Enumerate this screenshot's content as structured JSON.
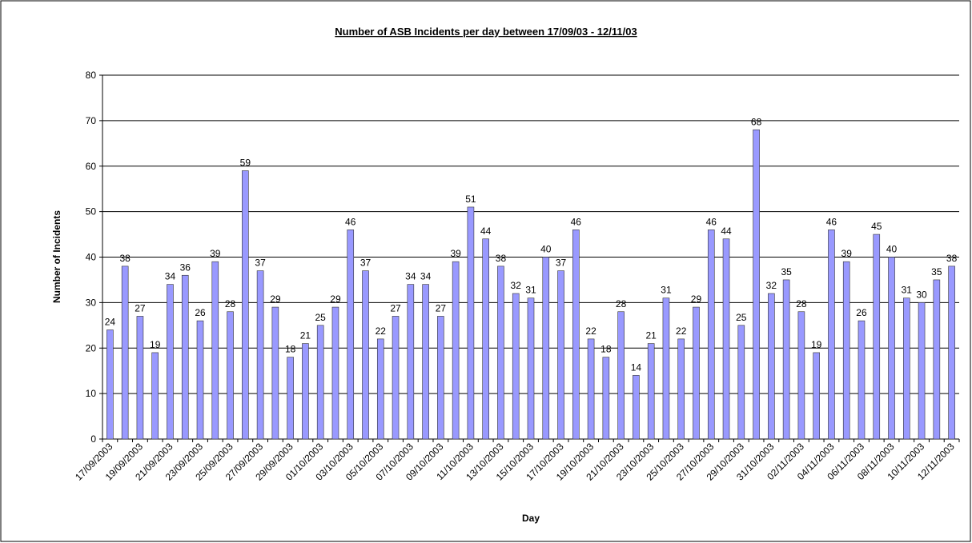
{
  "chart_data": {
    "type": "bar",
    "title": "Number of ASB Incidents per day between 17/09/03 - 12/11/03",
    "x_label": "Day",
    "y_label": "Number of Incidents",
    "categories": [
      "17/09/2003",
      null,
      "19/09/2003",
      null,
      "21/09/2003",
      null,
      "23/09/2003",
      null,
      "25/09/2003",
      null,
      "27/09/2003",
      null,
      "29/09/2003",
      null,
      "01/10/2003",
      null,
      "03/10/2003",
      null,
      "05/10/2003",
      null,
      "07/10/2003",
      null,
      "09/10/2003",
      null,
      "11/10/2003",
      null,
      "13/10/2003",
      null,
      "15/10/2003",
      null,
      "17/10/2003",
      null,
      "19/10/2003",
      null,
      "21/10/2003",
      null,
      "23/10/2003",
      null,
      "25/10/2003",
      null,
      "27/10/2003",
      null,
      "29/10/2003",
      null,
      "31/10/2003",
      null,
      "02/11/2003",
      null,
      "04/11/2003",
      null,
      "06/11/2003",
      null,
      "08/11/2003",
      null,
      "10/11/2003",
      null,
      "12/11/2003"
    ],
    "values": [
      24,
      38,
      27,
      19,
      34,
      36,
      26,
      39,
      28,
      59,
      37,
      29,
      18,
      21,
      25,
      29,
      46,
      37,
      22,
      27,
      34,
      34,
      27,
      39,
      51,
      44,
      38,
      32,
      31,
      40,
      37,
      46,
      22,
      18,
      28,
      14,
      21,
      31,
      22,
      29,
      46,
      44,
      25,
      68,
      32,
      35,
      28,
      19,
      46,
      39,
      26,
      45,
      40,
      31,
      30,
      35,
      38
    ],
    "color": "#9999ff",
    "ylim": [
      0,
      80
    ],
    "yticks": [
      0,
      10,
      20,
      30,
      40,
      50,
      60,
      70,
      80
    ],
    "grid": true
  }
}
